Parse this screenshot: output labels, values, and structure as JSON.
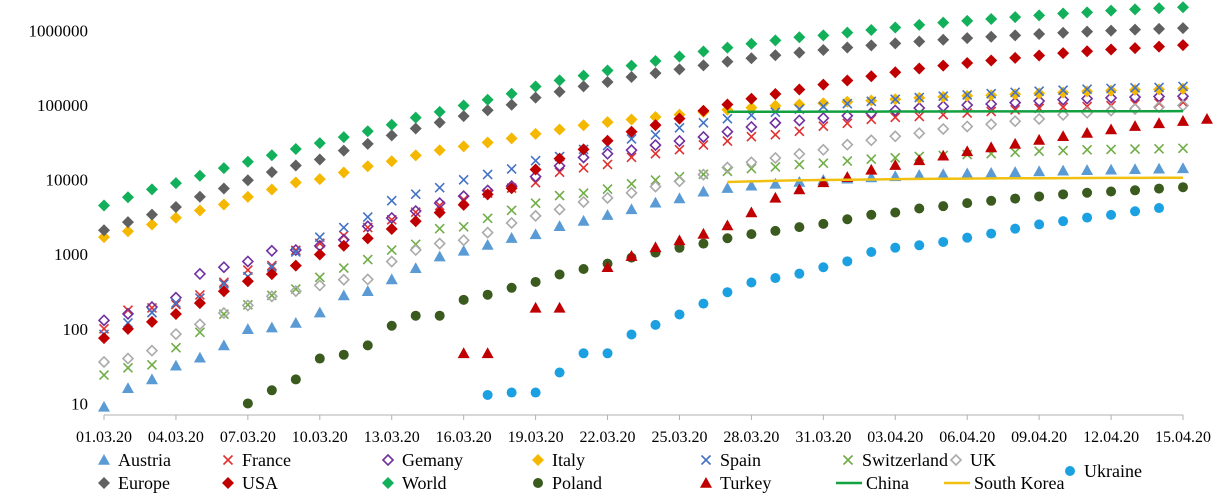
{
  "chart_data": {
    "type": "scatter",
    "y_scale": "log",
    "ylim": [
      7,
      2000000
    ],
    "y_ticks": [
      {
        "value": 10,
        "label": "10"
      },
      {
        "value": 100,
        "label": "100"
      },
      {
        "value": 1000,
        "label": "1000"
      },
      {
        "value": 10000,
        "label": "10000"
      },
      {
        "value": 100000,
        "label": "100000"
      },
      {
        "value": 1000000,
        "label": "1000000"
      }
    ],
    "x_ticks": [
      "01.03.20",
      "04.03.20",
      "07.03.20",
      "10.03.20",
      "13.03.20",
      "16.03.20",
      "19.03.20",
      "22.03.20",
      "25.03.20",
      "28.03.20",
      "31.03.20",
      "03.04.20",
      "06.04.20",
      "09.04.20",
      "12.04.20",
      "15.04.20"
    ],
    "x_start_label": "01.03.20",
    "x_days": 45,
    "grid": false,
    "legend_placement": "bottom",
    "series": [
      {
        "name": "Austria",
        "marker": "triangle",
        "color": "#5b9bd5",
        "start": 0,
        "values": [
          9,
          16,
          21,
          32,
          41,
          60,
          99,
          104,
          120,
          165,
          280,
          320,
          460,
          650,
          930,
          1110,
          1330,
          1650,
          1850,
          2380,
          2800,
          3350,
          4000,
          4900,
          5600,
          6900,
          7700,
          8300,
          8800,
          9300,
          9900,
          10300,
          10700,
          11100,
          11500,
          11800,
          12100,
          12300,
          12600,
          12900,
          13200,
          13400,
          13600,
          13800,
          14000,
          14200
        ]
      },
      {
        "name": "France",
        "marker": "x",
        "color": "#e03030",
        "start": 0,
        "values": [
          100,
          178,
          191,
          212,
          285,
          420,
          613,
          706,
          1130,
          1400,
          1780,
          2280,
          2900,
          3660,
          4500,
          5400,
          6600,
          7700,
          9100,
          12600,
          14400,
          16000,
          19900,
          22300,
          25200,
          29200,
          32900,
          37600,
          40000,
          44500,
          52100,
          56900,
          64300,
          68600,
          70500,
          74400,
          78200,
          82000,
          86300,
          90600,
          93800,
          95400,
          98000,
          103500,
          106200,
          108800
        ]
      },
      {
        "name": "Gemany",
        "marker": "diamond-open",
        "color": "#7030a0",
        "start": 0,
        "values": [
          130,
          159,
          196,
          262,
          545,
          670,
          800,
          1112,
          1139,
          1296,
          1567,
          2369,
          3062,
          3795,
          4838,
          6012,
          7156,
          8198,
          10999,
          15320,
          19848,
          22213,
          24873,
          29056,
          32986,
          37323,
          43938,
          50871,
          57695,
          62095,
          66885,
          71808,
          77872,
          84794,
          91159,
          96092,
          100123,
          103374,
          107663,
          113296,
          118181,
          122171,
          124908,
          127854,
          130072,
          131359
        ]
      },
      {
        "name": "Italy",
        "marker": "diamond",
        "color": "#f5b800",
        "start": 0,
        "values": [
          1694,
          2036,
          2502,
          3089,
          3858,
          4636,
          5883,
          7375,
          9172,
          10149,
          12462,
          15113,
          17660,
          21157,
          24747,
          27980,
          31506,
          35713,
          41035,
          47021,
          53578,
          59138,
          63927,
          69176,
          74386,
          80589,
          86498,
          92472,
          97689,
          101739,
          105792,
          110574,
          115242,
          119827,
          124632,
          128948,
          132547,
          135586,
          139422,
          143626,
          147577,
          152271,
          156363,
          159516,
          162488,
          165155
        ]
      },
      {
        "name": "Spain",
        "marker": "x",
        "color": "#4472c4",
        "start": 0,
        "values": [
          84,
          120,
          165,
          222,
          259,
          400,
          500,
          673,
          1073,
          1695,
          2277,
          3146,
          5232,
          6391,
          7798,
          9942,
          11748,
          13910,
          17963,
          20410,
          25374,
          28603,
          35136,
          39885,
          49515,
          57786,
          65719,
          73235,
          80110,
          87956,
          95923,
          104118,
          112065,
          119199,
          126168,
          131646,
          136675,
          141942,
          148220,
          153222,
          158273,
          163027,
          166831,
          170099,
          172541,
          177644
        ]
      },
      {
        "name": "Switzerland",
        "marker": "x",
        "color": "#70ad47",
        "start": 0,
        "values": [
          24,
          30,
          33,
          56,
          90,
          157,
          210,
          281,
          341,
          491,
          652,
          850,
          1139,
          1359,
          2200,
          2330,
          3028,
          3888,
          4840,
          6113,
          6575,
          7474,
          8795,
          9877,
          10897,
          11811,
          12928,
          14076,
          14829,
          15922,
          16605,
          17768,
          18827,
          19606,
          20505,
          21100,
          21657,
          22253,
          23280,
          24051,
          24551,
          25107,
          25415,
          25688,
          25936,
          26336
        ]
      },
      {
        "name": "UK",
        "marker": "diamond-open",
        "color": "#aaaaaa",
        "start": 0,
        "values": [
          36,
          40,
          51,
          85,
          115,
          163,
          206,
          273,
          321,
          382,
          456,
          460,
          798,
          1140,
          1391,
          1543,
          1950,
          2626,
          3269,
          3983,
          5018,
          5683,
          6650,
          8077,
          9529,
          11658,
          14543,
          17089,
          19522,
          22141,
          25150,
          29474,
          33718,
          38168,
          41903,
          47806,
          51608,
          55242,
          60733,
          65077,
          73758,
          78991,
          84279,
          88621,
          93873,
          98476
        ]
      },
      {
        "name": "Ukraine",
        "marker": "circle",
        "color": "#1ba1e2",
        "start": 16,
        "values": [
          13,
          14,
          14,
          26,
          47,
          47,
          84,
          113,
          156,
          218,
          310,
          418,
          480,
          549,
          669,
          804,
          1072,
          1225,
          1319,
          1462,
          1668,
          1892,
          2203,
          2511,
          2777,
          3102,
          3372,
          3764,
          4161
        ]
      },
      {
        "name": "Europe",
        "marker": "diamond",
        "color": "#606060",
        "start": 0,
        "values": [
          2100,
          2700,
          3400,
          4300,
          5900,
          7600,
          9800,
          12600,
          15500,
          18600,
          24500,
          30200,
          39200,
          48500,
          58300,
          71000,
          85200,
          101000,
          126000,
          151000,
          178000,
          204000,
          238000,
          268000,
          301000,
          340000,
          382000,
          424000,
          466000,
          505000,
          548000,
          590000,
          630000,
          672000,
          710000,
          750000,
          788000,
          822000,
          860000,
          895000,
          930000,
          965000,
          996000,
          1025000,
          1050000,
          1075000
        ]
      },
      {
        "name": "USA",
        "marker": "diamond",
        "color": "#c00000",
        "start": 0,
        "values": [
          75,
          100,
          124,
          158,
          221,
          319,
          435,
          541,
          704,
          994,
          1301,
          1630,
          2183,
          2770,
          3613,
          4596,
          6344,
          7667,
          13680,
          19101,
          25493,
          33276,
          43847,
          53740,
          65778,
          83836,
          101657,
          121478,
          140886,
          161807,
          188172,
          213372,
          243453,
          275586,
          308850,
          337072,
          366614,
          396223,
          429052,
          461437,
          496535,
          526396,
          555313,
          580619,
          607670,
          636350
        ]
      },
      {
        "name": "World",
        "marker": "diamond",
        "color": "#12b05a",
        "start": 0,
        "values": [
          4500,
          5800,
          7400,
          9000,
          11300,
          14300,
          17400,
          21200,
          25800,
          30900,
          37200,
          44600,
          54500,
          67800,
          81000,
          98800,
          118000,
          142000,
          177000,
          214000,
          248000,
          290000,
          338000,
          389000,
          448000,
          523000,
          588000,
          664000,
          735000,
          810000,
          860000,
          934000,
          1016000,
          1096000,
          1186000,
          1272000,
          1346000,
          1424000,
          1511000,
          1590000,
          1690000,
          1750000,
          1844000,
          1918000,
          1987000,
          2050000
        ]
      },
      {
        "name": "Poland",
        "marker": "circle",
        "color": "#3a5a1e",
        "start": 6,
        "values": [
          10,
          15,
          21,
          40,
          45,
          60,
          110,
          150,
          150,
          245,
          287,
          355,
          425,
          536,
          634,
          749,
          901,
          1051,
          1221,
          1389,
          1638,
          1862,
          2055,
          2311,
          2554,
          2946,
          3383,
          3627,
          4102,
          4413,
          4848,
          5205,
          5575,
          5955,
          6356,
          6674,
          6934,
          7202,
          7582,
          7918
        ]
      },
      {
        "name": "Turkey",
        "marker": "triangle",
        "color": "#c00000",
        "start": 15,
        "values": [
          47,
          47,
          null,
          191,
          191,
          null,
          670,
          947,
          1236,
          1529,
          1872,
          2433,
          3629,
          5698,
          7402,
          9217,
          10827,
          13531,
          15679,
          18135,
          20921,
          23934,
          27069,
          30217,
          34109,
          38226,
          42282,
          47029,
          52167,
          56956,
          61049,
          65111
        ]
      },
      {
        "name": "China",
        "line": true,
        "color": "#12a040",
        "start": 26,
        "values": [
          81200,
          81300,
          81400,
          81500,
          81600,
          81700,
          81800,
          81900,
          82000,
          82050,
          82100,
          82150,
          82200,
          82300,
          82400,
          82500,
          82600,
          82700,
          82800,
          83000
        ]
      },
      {
        "name": "South Korea",
        "line": true,
        "color": "#f0c010",
        "start": 26,
        "values": [
          9300,
          9480,
          9660,
          9790,
          9890,
          9980,
          10060,
          10160,
          10240,
          10280,
          10330,
          10380,
          10420,
          10450,
          10480,
          10510,
          10540,
          10560,
          10580,
          10610
        ]
      }
    ]
  }
}
